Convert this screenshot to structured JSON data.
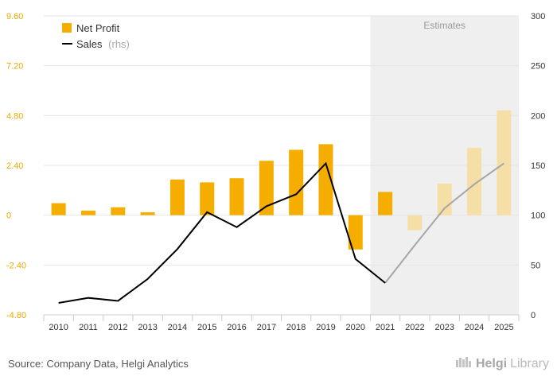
{
  "chart_data": {
    "type": "bar",
    "categories": [
      "2010",
      "2011",
      "2012",
      "2013",
      "2014",
      "2015",
      "2016",
      "2017",
      "2018",
      "2019",
      "2020",
      "2021",
      "2022",
      "2023",
      "2024",
      "2025"
    ],
    "series": [
      {
        "name": "Net Profit",
        "kind": "bar",
        "axis": "left",
        "values": [
          0.58,
          0.22,
          0.38,
          0.14,
          1.72,
          1.58,
          1.78,
          2.62,
          3.15,
          3.42,
          -1.65,
          1.12,
          -0.72,
          1.52,
          3.25,
          5.05
        ]
      },
      {
        "name": "Sales",
        "name_suffix": "(rhs)",
        "kind": "line",
        "axis": "right",
        "values": [
          12,
          17,
          14,
          36,
          66,
          103,
          88,
          109,
          121,
          152,
          56,
          32,
          70,
          107,
          131,
          152
        ]
      }
    ],
    "estimate_start_index": 11,
    "estimates_label": "Estimates",
    "y_left": {
      "ticks": [
        "9.60",
        "7.20",
        "4.80",
        "2.40",
        "0",
        "-2.40",
        "-4.80"
      ],
      "min": -4.8,
      "max": 9.6
    },
    "y_right": {
      "ticks": [
        "300",
        "250",
        "200",
        "150",
        "100",
        "50",
        "0"
      ],
      "min": 0,
      "max": 300
    },
    "colors": {
      "bar": "#f5ad00",
      "bar_estimate": "#f6dfa6",
      "line": "#000000",
      "line_estimate": "#a6a6a6",
      "left_axis_text": "#f0a800",
      "right_axis_text": "#333333",
      "estimate_bg": "#efefef",
      "grid": "#e6e6e6"
    },
    "legend": {
      "placement": "top-left"
    }
  },
  "source": "Source: Company Data, Helgi Analytics",
  "logo": {
    "part1": "Helgi",
    "part2": "Library"
  }
}
